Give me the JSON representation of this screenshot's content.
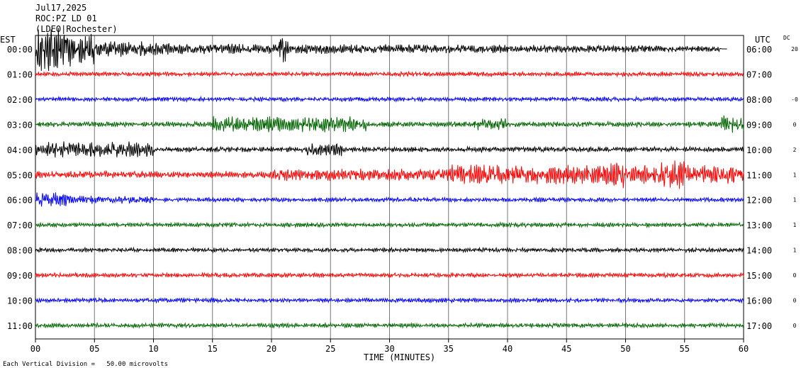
{
  "header": {
    "date": "Jul17,2025",
    "station": "ROC:PZ LD 01",
    "network": "(LDEO|Rochester)"
  },
  "left_title": "EST",
  "right_title": "UTC",
  "dc_title": "DC",
  "footer": "Each Vertical Division =   50.00 microvolts",
  "chart_data": {
    "type": "line",
    "xlabel": "TIME (MINUTES)",
    "xlim": [
      0,
      60
    ],
    "x_ticks": [
      "00",
      "05",
      "10",
      "15",
      "20",
      "25",
      "30",
      "35",
      "40",
      "45",
      "50",
      "55",
      "60"
    ],
    "rows": [
      {
        "est": "00:00",
        "utc": "06:00",
        "dc": "20",
        "color": "#000000",
        "amplitude": "very large at start, decaying",
        "end_minute": 58
      },
      {
        "est": "01:00",
        "utc": "07:00",
        "dc": "",
        "color": "#ff0000",
        "amplitude": "small"
      },
      {
        "est": "02:00",
        "utc": "08:00",
        "dc": "-0",
        "color": "#0000ff",
        "amplitude": "small"
      },
      {
        "est": "03:00",
        "utc": "09:00",
        "dc": "0",
        "color": "#006400",
        "amplitude": "medium bursts"
      },
      {
        "est": "04:00",
        "utc": "10:00",
        "dc": "2",
        "color": "#000000",
        "amplitude": "medium"
      },
      {
        "est": "05:00",
        "utc": "11:00",
        "dc": "1",
        "color": "#ff0000",
        "amplitude": "medium to large"
      },
      {
        "est": "06:00",
        "utc": "12:00",
        "dc": "1",
        "color": "#0000ff",
        "amplitude": "medium at start"
      },
      {
        "est": "07:00",
        "utc": "13:00",
        "dc": "1",
        "color": "#006400",
        "amplitude": "small"
      },
      {
        "est": "08:00",
        "utc": "14:00",
        "dc": "1",
        "color": "#000000",
        "amplitude": "small"
      },
      {
        "est": "09:00",
        "utc": "15:00",
        "dc": "0",
        "color": "#ff0000",
        "amplitude": "small"
      },
      {
        "est": "10:00",
        "utc": "16:00",
        "dc": "0",
        "color": "#0000ff",
        "amplitude": "small"
      },
      {
        "est": "11:00",
        "utc": "17:00",
        "dc": "0",
        "color": "#006400",
        "amplitude": "small"
      }
    ]
  }
}
